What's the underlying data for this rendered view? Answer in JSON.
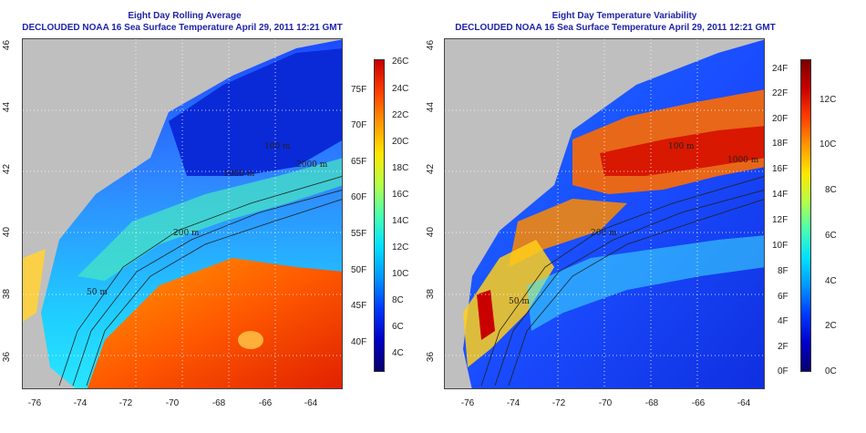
{
  "left_panel": {
    "title": "Eight Day Rolling Average",
    "subtitle": "DECLOUDED NOAA 16 Sea Surface Temperature April 29, 2011 12:21 GMT",
    "lat_ticks": [
      "36",
      "38",
      "40",
      "42",
      "44",
      "46"
    ],
    "lon_ticks": [
      "-76",
      "-74",
      "-72",
      "-70",
      "-68",
      "-66",
      "-64"
    ],
    "colorbar_f": [
      "75F",
      "70F",
      "65F",
      "60F",
      "55F",
      "50F",
      "45F",
      "40F"
    ],
    "colorbar_c": [
      "26C",
      "24C",
      "22C",
      "20C",
      "18C",
      "16C",
      "14C",
      "12C",
      "10C",
      "8C",
      "6C",
      "4C"
    ],
    "contour_labels": [
      "100 m",
      "200 m",
      "1000 m",
      "2000 m",
      "50 m"
    ]
  },
  "right_panel": {
    "title": "Eight Day Temperature Variability",
    "subtitle": "DECLOUDED NOAA 16 Sea Surface Temperature April 29, 2011 12:21 GMT",
    "lat_ticks": [
      "36",
      "38",
      "40",
      "42",
      "44",
      "46"
    ],
    "lon_ticks": [
      "-76",
      "-74",
      "-72",
      "-70",
      "-68",
      "-66",
      "-64"
    ],
    "colorbar_f": [
      "24F",
      "22F",
      "20F",
      "18F",
      "16F",
      "14F",
      "12F",
      "10F",
      "8F",
      "6F",
      "4F",
      "2F",
      "0F"
    ],
    "colorbar_c": [
      "12C",
      "10C",
      "8C",
      "6C",
      "4C",
      "2C",
      "0C"
    ],
    "contour_labels": [
      "100 m",
      "200 m",
      "1000 m",
      "50 m"
    ]
  },
  "colors": {
    "land": "#bfbfbf",
    "title": "#1f23a8",
    "colormap": [
      "#08006e",
      "#0000c8",
      "#0038ff",
      "#0096ff",
      "#00e0ff",
      "#48ffb0",
      "#b4ff48",
      "#ffe600",
      "#ff9600",
      "#ff3c00",
      "#c80000",
      "#7a0000"
    ]
  }
}
